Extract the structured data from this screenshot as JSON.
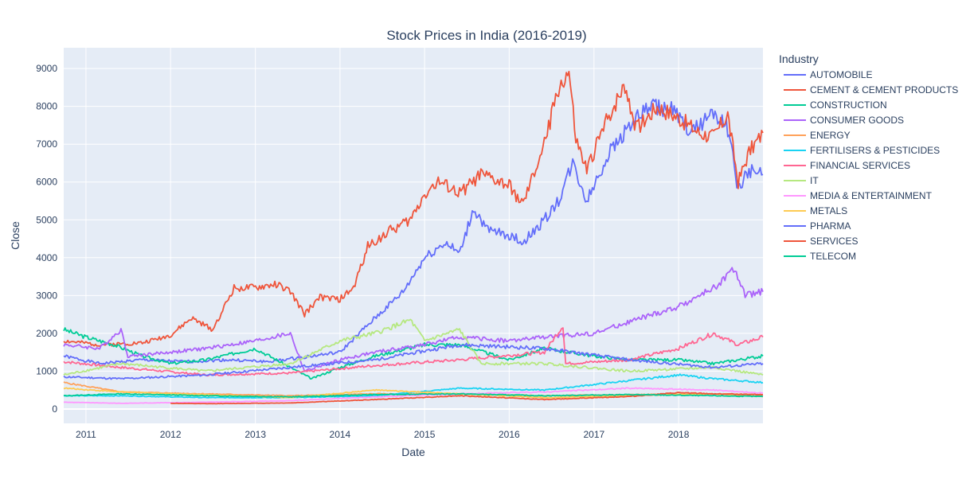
{
  "chart_data": {
    "type": "line",
    "title": "Stock Prices in India (2016-2019)",
    "xlabel": "Date",
    "ylabel": "Close",
    "xlim": [
      "2010-09-27",
      "2018-12-31"
    ],
    "ylim": [
      -380,
      9550
    ],
    "x_ticks": [
      "2011-01-01",
      "2012-01-01",
      "2013-01-01",
      "2014-01-01",
      "2015-01-01",
      "2016-01-01",
      "2017-01-01",
      "2018-01-01"
    ],
    "x_tick_labels": [
      "2011",
      "2012",
      "2013",
      "2014",
      "2015",
      "2016",
      "2017",
      "2018"
    ],
    "y_ticks": [
      0,
      1000,
      2000,
      3000,
      4000,
      5000,
      6000,
      7000,
      8000,
      9000
    ],
    "grid": true,
    "legend": {
      "title": "Industry",
      "position": "right"
    },
    "series": [
      {
        "name": "AUTOMOBILE",
        "color": "#636efa",
        "points": [
          [
            "2010-09-27",
            1400
          ],
          [
            "2011-03-01",
            1200
          ],
          [
            "2011-09-01",
            1300
          ],
          [
            "2012-03-01",
            1250
          ],
          [
            "2012-09-01",
            1300
          ],
          [
            "2013-03-01",
            1250
          ],
          [
            "2013-09-01",
            1400
          ],
          [
            "2014-01-01",
            1500
          ],
          [
            "2014-06-01",
            2400
          ],
          [
            "2014-10-01",
            3100
          ],
          [
            "2015-01-01",
            4000
          ],
          [
            "2015-04-01",
            4400
          ],
          [
            "2015-06-01",
            4100
          ],
          [
            "2015-08-01",
            5300
          ],
          [
            "2015-10-01",
            4700
          ],
          [
            "2016-01-01",
            4600
          ],
          [
            "2016-03-01",
            4400
          ],
          [
            "2016-06-01",
            5000
          ],
          [
            "2016-08-01",
            5500
          ],
          [
            "2016-10-01",
            6500
          ],
          [
            "2016-12-01",
            5500
          ],
          [
            "2017-03-01",
            6700
          ],
          [
            "2017-06-01",
            7500
          ],
          [
            "2017-09-01",
            8000
          ],
          [
            "2017-12-01",
            7900
          ],
          [
            "2018-03-01",
            7300
          ],
          [
            "2018-06-01",
            7900
          ],
          [
            "2018-08-01",
            7400
          ],
          [
            "2018-09-15",
            5800
          ],
          [
            "2018-11-01",
            6300
          ],
          [
            "2018-12-31",
            6200
          ]
        ]
      },
      {
        "name": "CEMENT & CEMENT PRODUCTS",
        "color": "#ef553b",
        "points": [
          [
            "2010-09-27",
            1800
          ],
          [
            "2011-03-01",
            1700
          ],
          [
            "2011-09-01",
            1750
          ],
          [
            "2012-01-01",
            1950
          ],
          [
            "2012-04-01",
            2400
          ],
          [
            "2012-07-01",
            2100
          ],
          [
            "2012-10-01",
            3200
          ],
          [
            "2013-01-01",
            3200
          ],
          [
            "2013-04-01",
            3300
          ],
          [
            "2013-06-01",
            3100
          ],
          [
            "2013-08-01",
            2500
          ],
          [
            "2013-10-01",
            2950
          ],
          [
            "2014-01-01",
            2900
          ],
          [
            "2014-03-01",
            3200
          ],
          [
            "2014-05-01",
            4300
          ],
          [
            "2014-08-01",
            4700
          ],
          [
            "2014-11-01",
            5000
          ],
          [
            "2015-01-01",
            5700
          ],
          [
            "2015-03-01",
            6000
          ],
          [
            "2015-06-01",
            5700
          ],
          [
            "2015-09-01",
            6200
          ],
          [
            "2016-01-01",
            5900
          ],
          [
            "2016-03-01",
            5400
          ],
          [
            "2016-06-01",
            7000
          ],
          [
            "2016-08-01",
            8500
          ],
          [
            "2016-09-15",
            8900
          ],
          [
            "2016-10-15",
            7100
          ],
          [
            "2016-12-01",
            6300
          ],
          [
            "2017-03-01",
            7700
          ],
          [
            "2017-05-15",
            8600
          ],
          [
            "2017-07-01",
            7400
          ],
          [
            "2017-10-01",
            8000
          ],
          [
            "2018-01-01",
            7700
          ],
          [
            "2018-04-01",
            7300
          ],
          [
            "2018-06-01",
            7200
          ],
          [
            "2018-08-01",
            7800
          ],
          [
            "2018-09-15",
            6000
          ],
          [
            "2018-11-01",
            6800
          ],
          [
            "2018-12-31",
            7300
          ]
        ]
      },
      {
        "name": "CONSTRUCTION",
        "color": "#00cc96",
        "points": [
          [
            "2010-09-27",
            2100
          ],
          [
            "2011-01-01",
            1900
          ],
          [
            "2011-05-01",
            1700
          ],
          [
            "2011-09-01",
            1400
          ],
          [
            "2012-01-01",
            1200
          ],
          [
            "2012-06-01",
            1300
          ],
          [
            "2013-01-01",
            1600
          ],
          [
            "2013-06-01",
            1100
          ],
          [
            "2013-09-01",
            800
          ],
          [
            "2014-01-01",
            1100
          ],
          [
            "2014-06-01",
            1400
          ],
          [
            "2015-01-01",
            1700
          ],
          [
            "2015-06-01",
            1700
          ],
          [
            "2016-01-01",
            1300
          ],
          [
            "2016-06-01",
            1600
          ],
          [
            "2017-01-01",
            1400
          ],
          [
            "2017-06-01",
            1300
          ],
          [
            "2018-01-01",
            1300
          ],
          [
            "2018-06-01",
            1200
          ],
          [
            "2018-12-31",
            1400
          ]
        ]
      },
      {
        "name": "CONSUMER GOODS",
        "color": "#ab63fa",
        "points": [
          [
            "2010-09-27",
            1700
          ],
          [
            "2011-03-01",
            1600
          ],
          [
            "2011-06-01",
            2100
          ],
          [
            "2011-07-01",
            1400
          ],
          [
            "2012-01-01",
            1500
          ],
          [
            "2012-06-01",
            1600
          ],
          [
            "2013-01-01",
            1800
          ],
          [
            "2013-06-01",
            2000
          ],
          [
            "2013-08-01",
            1000
          ],
          [
            "2014-01-01",
            1300
          ],
          [
            "2014-06-01",
            1500
          ],
          [
            "2015-01-01",
            1700
          ],
          [
            "2015-06-01",
            1900
          ],
          [
            "2016-01-01",
            1800
          ],
          [
            "2016-06-01",
            1900
          ],
          [
            "2017-01-01",
            2000
          ],
          [
            "2017-06-01",
            2300
          ],
          [
            "2018-01-01",
            2700
          ],
          [
            "2018-06-01",
            3200
          ],
          [
            "2018-09-01",
            3700
          ],
          [
            "2018-10-15",
            3000
          ],
          [
            "2018-12-31",
            3100
          ]
        ]
      },
      {
        "name": "ENERGY",
        "color": "#ffa15a",
        "points": [
          [
            "2010-09-27",
            700
          ],
          [
            "2011-06-01",
            450
          ],
          [
            "2012-06-01",
            400
          ],
          [
            "2013-06-01",
            350
          ],
          [
            "2014-06-01",
            400
          ],
          [
            "2015-06-01",
            400
          ],
          [
            "2016-06-01",
            350
          ],
          [
            "2017-06-01",
            380
          ],
          [
            "2018-06-01",
            400
          ],
          [
            "2018-12-31",
            380
          ]
        ]
      },
      {
        "name": "FERTILISERS & PESTICIDES",
        "color": "#19d3f3",
        "points": [
          [
            "2010-09-27",
            350
          ],
          [
            "2011-06-01",
            350
          ],
          [
            "2012-06-01",
            300
          ],
          [
            "2013-06-01",
            300
          ],
          [
            "2014-06-01",
            350
          ],
          [
            "2015-06-01",
            550
          ],
          [
            "2016-06-01",
            500
          ],
          [
            "2017-06-01",
            750
          ],
          [
            "2018-01-01",
            900
          ],
          [
            "2018-06-01",
            800
          ],
          [
            "2018-12-31",
            700
          ]
        ]
      },
      {
        "name": "FINANCIAL SERVICES",
        "color": "#ff6692",
        "points": [
          [
            "2010-09-27",
            1250
          ],
          [
            "2011-06-01",
            1100
          ],
          [
            "2012-06-01",
            900
          ],
          [
            "2013-06-01",
            950
          ],
          [
            "2014-06-01",
            1150
          ],
          [
            "2015-06-01",
            1300
          ],
          [
            "2016-06-01",
            1500
          ],
          [
            "2016-08-20",
            2200
          ],
          [
            "2016-09-01",
            1200
          ],
          [
            "2017-06-01",
            1300
          ],
          [
            "2018-01-01",
            1600
          ],
          [
            "2018-06-01",
            2000
          ],
          [
            "2018-09-15",
            1700
          ],
          [
            "2018-12-31",
            1900
          ]
        ]
      },
      {
        "name": "IT",
        "color": "#b6e880",
        "points": [
          [
            "2010-09-27",
            900
          ],
          [
            "2011-06-01",
            1200
          ],
          [
            "2012-06-01",
            1000
          ],
          [
            "2013-06-01",
            1200
          ],
          [
            "2014-01-01",
            1800
          ],
          [
            "2014-06-01",
            2000
          ],
          [
            "2014-11-01",
            2350
          ],
          [
            "2015-01-01",
            1800
          ],
          [
            "2015-06-01",
            2100
          ],
          [
            "2015-09-01",
            1200
          ],
          [
            "2016-06-01",
            1200
          ],
          [
            "2017-06-01",
            1000
          ],
          [
            "2018-06-01",
            1100
          ],
          [
            "2018-12-31",
            900
          ]
        ]
      },
      {
        "name": "MEDIA & ENTERTAINMENT",
        "color": "#ff97ff",
        "points": [
          [
            "2010-09-27",
            180
          ],
          [
            "2011-06-01",
            150
          ],
          [
            "2012-06-01",
            180
          ],
          [
            "2013-06-01",
            220
          ],
          [
            "2014-06-01",
            320
          ],
          [
            "2015-06-01",
            400
          ],
          [
            "2016-06-01",
            450
          ],
          [
            "2017-06-01",
            550
          ],
          [
            "2018-06-01",
            500
          ],
          [
            "2018-12-31",
            420
          ]
        ]
      },
      {
        "name": "METALS",
        "color": "#fecb52",
        "points": [
          [
            "2010-09-27",
            550
          ],
          [
            "2011-06-01",
            450
          ],
          [
            "2012-06-01",
            380
          ],
          [
            "2013-06-01",
            300
          ],
          [
            "2014-06-01",
            500
          ],
          [
            "2015-06-01",
            400
          ],
          [
            "2016-06-01",
            300
          ],
          [
            "2017-06-01",
            350
          ],
          [
            "2018-06-01",
            400
          ],
          [
            "2018-12-31",
            330
          ]
        ]
      },
      {
        "name": "PHARMA",
        "color": "#636efa",
        "points": [
          [
            "2010-09-27",
            850
          ],
          [
            "2011-06-01",
            800
          ],
          [
            "2012-06-01",
            900
          ],
          [
            "2013-06-01",
            1100
          ],
          [
            "2014-06-01",
            1300
          ],
          [
            "2015-06-01",
            1700
          ],
          [
            "2016-06-01",
            1600
          ],
          [
            "2017-06-01",
            1300
          ],
          [
            "2018-06-01",
            1100
          ],
          [
            "2018-12-31",
            1200
          ]
        ]
      },
      {
        "name": "SERVICES",
        "color": "#ef553b",
        "points": [
          [
            "2012-01-01",
            150
          ],
          [
            "2012-06-01",
            140
          ],
          [
            "2013-06-01",
            160
          ],
          [
            "2014-06-01",
            250
          ],
          [
            "2015-06-01",
            350
          ],
          [
            "2016-06-01",
            250
          ],
          [
            "2017-06-01",
            330
          ],
          [
            "2018-01-01",
            430
          ],
          [
            "2018-06-01",
            400
          ],
          [
            "2018-12-31",
            380
          ]
        ]
      },
      {
        "name": "TELECOM",
        "color": "#00cc96",
        "points": [
          [
            "2010-09-27",
            350
          ],
          [
            "2011-06-01",
            400
          ],
          [
            "2012-06-01",
            350
          ],
          [
            "2013-06-01",
            320
          ],
          [
            "2014-06-01",
            380
          ],
          [
            "2015-06-01",
            400
          ],
          [
            "2016-06-01",
            350
          ],
          [
            "2017-06-01",
            380
          ],
          [
            "2018-06-01",
            350
          ],
          [
            "2018-12-31",
            330
          ]
        ]
      }
    ]
  }
}
